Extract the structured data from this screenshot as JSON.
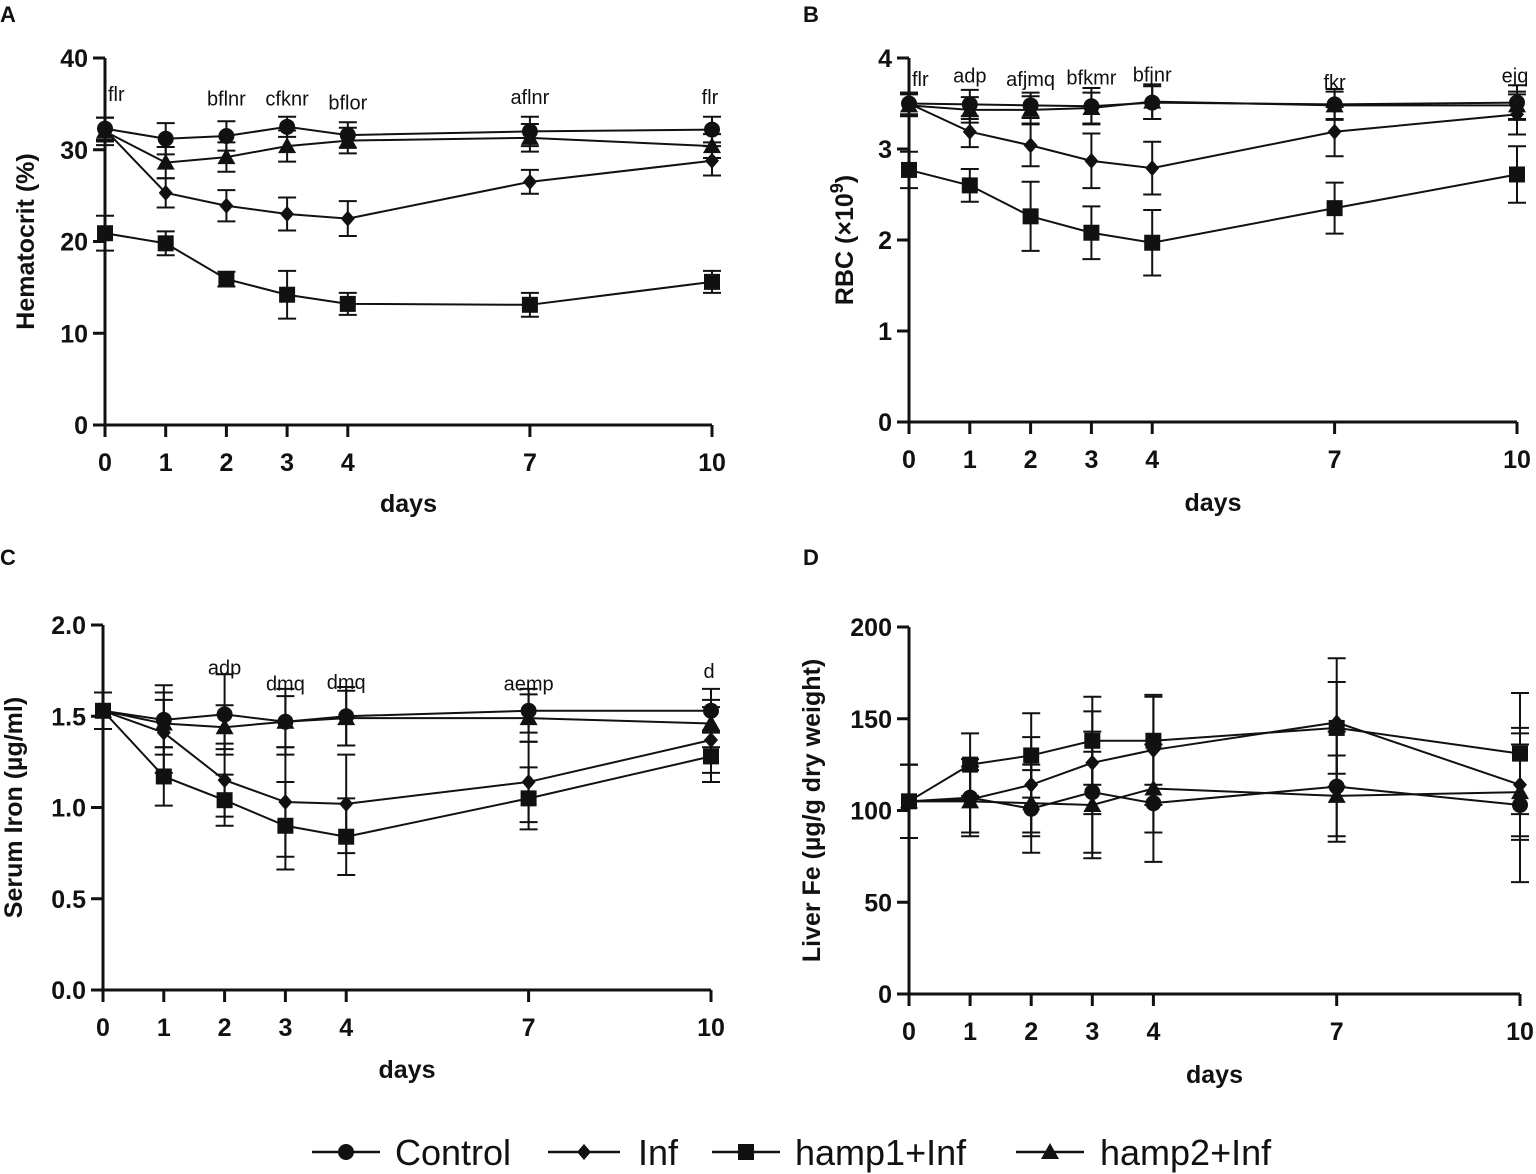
{
  "legend": {
    "items": [
      {
        "label": "Control",
        "marker": "circle"
      },
      {
        "label": "Inf",
        "marker": "diamond"
      },
      {
        "label": "hamp1+Inf",
        "marker": "square"
      },
      {
        "label": "hamp2+Inf",
        "marker": "triangle"
      }
    ]
  },
  "chart_data": [
    {
      "panel": "A",
      "type": "line",
      "xlabel": "days",
      "ylabel": "Hematocrit (%)",
      "ylim": [
        0,
        40
      ],
      "yticks": [
        0,
        10,
        20,
        30,
        40
      ],
      "ytick_labels": [
        "0",
        "10",
        "20",
        "30",
        "40"
      ],
      "x": [
        0,
        1,
        2,
        3,
        4,
        7,
        10
      ],
      "xtick_labels": [
        "0",
        "1",
        "2",
        "3",
        "4",
        "7",
        "10"
      ],
      "series": [
        {
          "name": "Control",
          "marker": "circle",
          "values": [
            32.3,
            31.2,
            31.5,
            32.5,
            31.6,
            32.0,
            32.2
          ],
          "errors": [
            1.2,
            1.7,
            1.6,
            1.1,
            1.4,
            1.6,
            1.4
          ]
        },
        {
          "name": "Inf",
          "marker": "diamond",
          "values": [
            32.2,
            25.3,
            23.9,
            23.0,
            22.5,
            26.5,
            28.8
          ],
          "errors": [
            1.3,
            1.6,
            1.7,
            1.8,
            1.9,
            1.3,
            1.6
          ]
        },
        {
          "name": "hamp1+Inf",
          "marker": "square",
          "values": [
            20.9,
            19.8,
            15.9,
            14.2,
            13.2,
            13.1,
            15.6
          ],
          "errors": [
            1.9,
            1.3,
            0.8,
            2.6,
            1.2,
            1.3,
            1.2
          ]
        },
        {
          "name": "hamp2+Inf",
          "marker": "triangle",
          "values": [
            32.0,
            28.6,
            29.2,
            30.4,
            31.0,
            31.3,
            30.4
          ],
          "errors": [
            1.5,
            1.7,
            1.6,
            1.7,
            1.4,
            1.5,
            1.3
          ]
        }
      ],
      "annotations": [
        {
          "x": 0,
          "y": 35.3,
          "text": "flr"
        },
        {
          "x": 2,
          "y": 34.8,
          "text": "bflnr"
        },
        {
          "x": 3,
          "y": 34.8,
          "text": "cfknr"
        },
        {
          "x": 4,
          "y": 34.4,
          "text": "bflor"
        },
        {
          "x": 7,
          "y": 35.0,
          "text": "aflnr"
        },
        {
          "x": 10,
          "y": 35.0,
          "text": "flr"
        }
      ]
    },
    {
      "panel": "B",
      "type": "line",
      "xlabel": "days",
      "ylabel": "RBC (×10⁹)",
      "ylim": [
        0,
        4
      ],
      "yticks": [
        0,
        1,
        2,
        3,
        4
      ],
      "ytick_labels": [
        "0",
        "1",
        "2",
        "3",
        "4"
      ],
      "x": [
        0,
        1,
        2,
        3,
        4,
        7,
        10
      ],
      "xtick_labels": [
        "0",
        "1",
        "2",
        "3",
        "4",
        "7",
        "10"
      ],
      "series": [
        {
          "name": "Control",
          "marker": "circle",
          "values": [
            3.5,
            3.49,
            3.48,
            3.47,
            3.51,
            3.49,
            3.51
          ],
          "errors": [
            0.12,
            0.16,
            0.14,
            0.2,
            0.18,
            0.17,
            0.19
          ]
        },
        {
          "name": "Inf",
          "marker": "diamond",
          "values": [
            3.5,
            3.19,
            3.04,
            2.87,
            2.79,
            3.19,
            3.38
          ],
          "errors": [
            0.12,
            0.17,
            0.23,
            0.3,
            0.29,
            0.27,
            0.22
          ]
        },
        {
          "name": "hamp1+Inf",
          "marker": "square",
          "values": [
            2.77,
            2.6,
            2.26,
            2.08,
            1.97,
            2.35,
            2.72
          ],
          "errors": [
            0.2,
            0.18,
            0.38,
            0.29,
            0.36,
            0.28,
            0.31
          ]
        },
        {
          "name": "hamp2+Inf",
          "marker": "triangle",
          "values": [
            3.48,
            3.43,
            3.43,
            3.45,
            3.52,
            3.48,
            3.48
          ],
          "errors": [
            0.12,
            0.14,
            0.15,
            0.17,
            0.19,
            0.15,
            0.15
          ]
        }
      ],
      "annotations": [
        {
          "x": 0,
          "y": 3.69,
          "text": "flr"
        },
        {
          "x": 1,
          "y": 3.73,
          "text": "adp"
        },
        {
          "x": 2,
          "y": 3.69,
          "text": "afjmq"
        },
        {
          "x": 3,
          "y": 3.71,
          "text": "bfkmr"
        },
        {
          "x": 4,
          "y": 3.74,
          "text": "bfjnr"
        },
        {
          "x": 7,
          "y": 3.66,
          "text": "fkr"
        },
        {
          "x": 10,
          "y": 3.73,
          "text": "ejq"
        }
      ]
    },
    {
      "panel": "C",
      "type": "line",
      "xlabel": "days",
      "ylabel": "Serum Iron (µg/ml)",
      "ylim": [
        0,
        2
      ],
      "yticks": [
        0,
        0.5,
        1.0,
        1.5,
        2.0
      ],
      "ytick_labels": [
        "0.0",
        "0.5",
        "1.0",
        "1.5",
        "2.0"
      ],
      "x": [
        0,
        1,
        2,
        3,
        4,
        7,
        10
      ],
      "xtick_labels": [
        "0",
        "1",
        "2",
        "3",
        "4",
        "7",
        "10"
      ],
      "series": [
        {
          "name": "Control",
          "marker": "circle",
          "values": [
            1.53,
            1.48,
            1.51,
            1.47,
            1.5,
            1.53,
            1.53
          ],
          "errors": [
            0.1,
            0.19,
            0.22,
            0.18,
            0.16,
            0.12,
            0.12
          ]
        },
        {
          "name": "Inf",
          "marker": "diamond",
          "values": [
            1.53,
            1.41,
            1.15,
            1.03,
            1.02,
            1.14,
            1.37
          ],
          "errors": [
            0.1,
            0.22,
            0.2,
            0.3,
            0.27,
            0.22,
            0.18
          ]
        },
        {
          "name": "hamp1+Inf",
          "marker": "square",
          "values": [
            1.53,
            1.17,
            1.04,
            0.9,
            0.84,
            1.05,
            1.28
          ],
          "errors": [
            0.1,
            0.16,
            0.14,
            0.24,
            0.21,
            0.17,
            0.14
          ]
        },
        {
          "name": "hamp2+Inf",
          "marker": "triangle",
          "values": [
            1.53,
            1.46,
            1.44,
            1.47,
            1.49,
            1.49,
            1.46
          ],
          "errors": [
            0.1,
            0.13,
            0.12,
            0.14,
            0.15,
            0.13,
            0.13
          ]
        }
      ],
      "annotations": [
        {
          "x": 2,
          "y": 1.73,
          "text": "adp"
        },
        {
          "x": 3,
          "y": 1.64,
          "text": "dmq"
        },
        {
          "x": 4,
          "y": 1.65,
          "text": "dmq"
        },
        {
          "x": 7,
          "y": 1.64,
          "text": "aemp"
        },
        {
          "x": 10,
          "y": 1.71,
          "text": "d"
        }
      ]
    },
    {
      "panel": "D",
      "type": "line",
      "xlabel": "days",
      "ylabel": "Liver Fe (µg/g dry weight)",
      "ylim": [
        0,
        200
      ],
      "yticks": [
        0,
        50,
        100,
        150,
        200
      ],
      "ytick_labels": [
        "0",
        "50",
        "100",
        "150",
        "200"
      ],
      "x": [
        0,
        1,
        2,
        3,
        4,
        7,
        10
      ],
      "xtick_labels": [
        "0",
        "1",
        "2",
        "3",
        "4",
        "7",
        "10"
      ],
      "series": [
        {
          "name": "Control",
          "marker": "circle",
          "values": [
            105,
            107,
            101,
            110,
            104,
            113,
            103
          ],
          "errors": [
            20,
            21,
            24,
            33,
            32,
            30,
            42
          ]
        },
        {
          "name": "Inf",
          "marker": "diamond",
          "values": [
            105,
            106,
            114,
            126,
            133,
            148,
            114
          ],
          "errors": [
            20,
            18,
            26,
            28,
            30,
            35,
            28
          ]
        },
        {
          "name": "hamp1+Inf",
          "marker": "square",
          "values": [
            105,
            125,
            130,
            138,
            138,
            145,
            131
          ],
          "errors": [
            20,
            17,
            23,
            24,
            24,
            25,
            33
          ]
        },
        {
          "name": "hamp2+Inf",
          "marker": "triangle",
          "values": [
            105,
            105,
            104,
            103,
            112,
            108,
            110
          ],
          "errors": [
            20,
            17,
            18,
            29,
            24,
            22,
            26
          ]
        }
      ],
      "annotations": []
    }
  ]
}
